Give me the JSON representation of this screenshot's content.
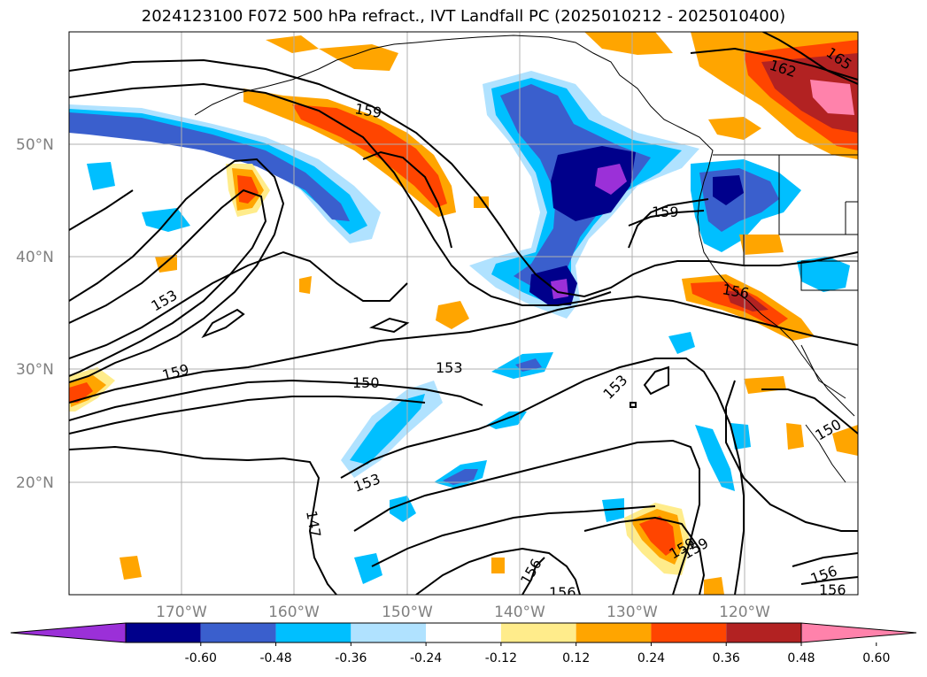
{
  "title": "2024123100 F072 500 hPa refract., IVT Landfall PC (2025010212 - 2025010400)",
  "lat_labels": [
    "50°N",
    "40°N",
    "30°N",
    "20°N"
  ],
  "lon_labels": [
    "170°W",
    "160°W",
    "150°W",
    "140°W",
    "130°W",
    "120°W"
  ],
  "contour_labels": [
    "159",
    "162",
    "165",
    "159",
    "153",
    "159",
    "150",
    "153",
    "153",
    "159",
    "156",
    "153",
    "147",
    "156",
    "156",
    "159",
    "156",
    "156",
    "150"
  ],
  "colorbar": {
    "colors": [
      "#9b30d8",
      "#00008b",
      "#3a5fcd",
      "#00bfff",
      "#b0e2ff",
      "#ffffff",
      "#ffec8b",
      "#ffa500",
      "#ff4500",
      "#b22222",
      "#ff82ab"
    ],
    "ticks": [
      "-0.60",
      "-0.48",
      "-0.36",
      "-0.24",
      "-0.12",
      "0.12",
      "0.24",
      "0.36",
      "0.48",
      "0.60"
    ]
  },
  "colors": {
    "grid": "#b0b0b0",
    "contour": "#000000",
    "coast": "#000000"
  }
}
